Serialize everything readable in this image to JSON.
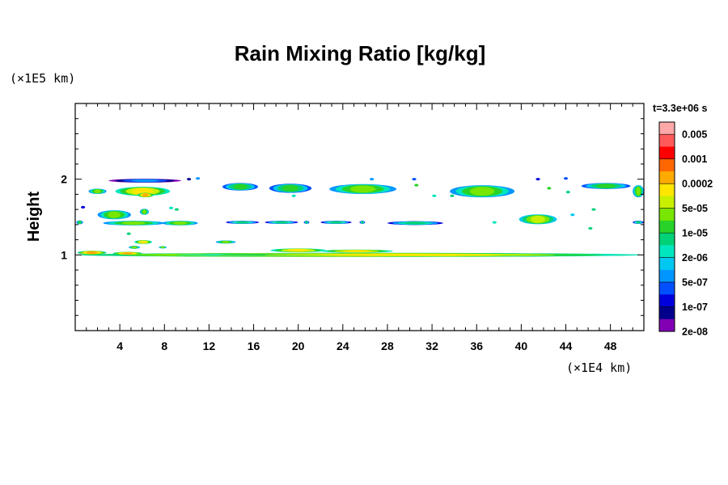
{
  "chart_data": {
    "type": "heatmap",
    "title": "Rain Mixing Ratio [kg/kg]",
    "ylabel": "Height",
    "x_unit": "(×1E4 km)",
    "y_unit": "(×1E5 km)",
    "time_label": "t=3.3e+06 s",
    "xlim": [
      0,
      51
    ],
    "ylim": [
      0,
      3
    ],
    "x_ticks": [
      4,
      8,
      12,
      16,
      20,
      24,
      28,
      32,
      36,
      40,
      44,
      48
    ],
    "x_tick_labels": [
      "4",
      "8",
      "12",
      "16",
      "20",
      "24",
      "28",
      "32",
      "36",
      "40",
      "44",
      "48"
    ],
    "y_ticks": [
      1,
      2
    ],
    "y_tick_labels": [
      "1",
      "2"
    ],
    "colorbar": {
      "labels": [
        "0.005",
        "0.001",
        "0.0002",
        "5e-05",
        "1e-05",
        "2e-06",
        "5e-07",
        "1e-07",
        "2e-08"
      ],
      "colors": [
        "#ffa8a8",
        "#ff5a5a",
        "#ff0000",
        "#ff6600",
        "#ffaa00",
        "#ffe600",
        "#c8f000",
        "#78e600",
        "#28d228",
        "#00d278",
        "#00e6be",
        "#00c8f0",
        "#0096ff",
        "#0050ff",
        "#0000dc",
        "#00008c",
        "#8200b4"
      ]
    },
    "regions": [
      {
        "x0": 0.0,
        "x1": 51.0,
        "y": 1.0,
        "h": 0.055,
        "level": 5
      },
      {
        "x0": 0.2,
        "x1": 2.8,
        "y": 1.03,
        "h": 0.05,
        "level": 5
      },
      {
        "x0": 3.4,
        "x1": 6.0,
        "y": 1.02,
        "h": 0.04,
        "level": 5
      },
      {
        "x0": 9.0,
        "x1": 51.0,
        "y": 1.0,
        "h": 0.04,
        "level": 6
      },
      {
        "x0": 17.5,
        "x1": 22.5,
        "y": 1.06,
        "h": 0.05,
        "level": 6
      },
      {
        "x0": 22.0,
        "x1": 28.5,
        "y": 1.05,
        "h": 0.04,
        "level": 6
      },
      {
        "x0": 5.3,
        "x1": 6.9,
        "y": 1.17,
        "h": 0.05,
        "level": 6
      },
      {
        "x0": 4.8,
        "x1": 5.8,
        "y": 1.1,
        "h": 0.04,
        "level": 8
      },
      {
        "x0": 7.5,
        "x1": 8.2,
        "y": 1.1,
        "h": 0.03,
        "level": 8
      },
      {
        "x0": 12.6,
        "x1": 14.4,
        "y": 1.17,
        "h": 0.04,
        "level": 8
      },
      {
        "x0": 0.1,
        "x1": 0.7,
        "y": 1.43,
        "h": 0.05,
        "level": 9
      },
      {
        "x0": 2.5,
        "x1": 8.0,
        "y": 1.42,
        "h": 0.06,
        "level": 8
      },
      {
        "x0": 7.8,
        "x1": 11.0,
        "y": 1.42,
        "h": 0.06,
        "level": 8
      },
      {
        "x0": 13.5,
        "x1": 16.5,
        "y": 1.43,
        "h": 0.04,
        "level": 10
      },
      {
        "x0": 17.0,
        "x1": 20.0,
        "y": 1.43,
        "h": 0.04,
        "level": 10
      },
      {
        "x0": 20.5,
        "x1": 21.0,
        "y": 1.43,
        "h": 0.04,
        "level": 10
      },
      {
        "x0": 22.0,
        "x1": 24.8,
        "y": 1.43,
        "h": 0.04,
        "level": 10
      },
      {
        "x0": 25.5,
        "x1": 26.0,
        "y": 1.43,
        "h": 0.04,
        "level": 10
      },
      {
        "x0": 28.0,
        "x1": 33.0,
        "y": 1.42,
        "h": 0.05,
        "level": 10
      },
      {
        "x0": 50.0,
        "x1": 51.0,
        "y": 1.43,
        "h": 0.04,
        "level": 10
      },
      {
        "x0": 39.8,
        "x1": 43.2,
        "y": 1.47,
        "h": 0.13,
        "level": 7
      },
      {
        "x0": 2.0,
        "x1": 5.0,
        "y": 1.53,
        "h": 0.12,
        "level": 8
      },
      {
        "x0": 5.8,
        "x1": 6.6,
        "y": 1.57,
        "h": 0.08,
        "level": 8
      },
      {
        "x0": 1.2,
        "x1": 2.8,
        "y": 1.84,
        "h": 0.07,
        "level": 8
      },
      {
        "x0": 3.6,
        "x1": 8.5,
        "y": 1.84,
        "h": 0.12,
        "level": 6
      },
      {
        "x0": 5.6,
        "x1": 7.0,
        "y": 1.79,
        "h": 0.06,
        "level": 5
      },
      {
        "x0": 3.0,
        "x1": 9.5,
        "y": 1.98,
        "h": 0.05,
        "level": 13
      },
      {
        "x0": 13.2,
        "x1": 16.4,
        "y": 1.9,
        "h": 0.1,
        "level": 9
      },
      {
        "x0": 17.4,
        "x1": 21.2,
        "y": 1.88,
        "h": 0.12,
        "level": 9
      },
      {
        "x0": 22.8,
        "x1": 28.8,
        "y": 1.87,
        "h": 0.13,
        "level": 8
      },
      {
        "x0": 33.6,
        "x1": 39.4,
        "y": 1.84,
        "h": 0.16,
        "level": 8
      },
      {
        "x0": 45.4,
        "x1": 49.8,
        "y": 1.91,
        "h": 0.08,
        "level": 9
      },
      {
        "x0": 50.0,
        "x1": 51.0,
        "y": 1.84,
        "h": 0.16,
        "level": 8
      }
    ],
    "specks": [
      {
        "x": 0.7,
        "y": 1.63,
        "level": 14
      },
      {
        "x": 9.1,
        "y": 1.6,
        "level": 9
      },
      {
        "x": 10.2,
        "y": 2.0,
        "level": 15
      },
      {
        "x": 11.0,
        "y": 2.01,
        "level": 12
      },
      {
        "x": 30.4,
        "y": 2.0,
        "level": 13
      },
      {
        "x": 30.6,
        "y": 1.92,
        "level": 8
      },
      {
        "x": 26.6,
        "y": 2.0,
        "level": 12
      },
      {
        "x": 41.5,
        "y": 2.0,
        "level": 14
      },
      {
        "x": 44.0,
        "y": 2.01,
        "level": 13
      },
      {
        "x": 42.5,
        "y": 1.88,
        "level": 8
      },
      {
        "x": 32.2,
        "y": 1.78,
        "level": 10
      },
      {
        "x": 37.6,
        "y": 1.43,
        "level": 10
      },
      {
        "x": 44.6,
        "y": 1.53,
        "level": 11
      },
      {
        "x": 46.2,
        "y": 1.35,
        "level": 9
      },
      {
        "x": 46.5,
        "y": 1.6,
        "level": 9
      },
      {
        "x": 4.8,
        "y": 1.28,
        "level": 9
      },
      {
        "x": 8.6,
        "y": 1.62,
        "level": 10
      },
      {
        "x": 19.6,
        "y": 1.78,
        "level": 10
      },
      {
        "x": 33.8,
        "y": 1.78,
        "level": 9
      },
      {
        "x": 44.2,
        "y": 1.83,
        "level": 9
      }
    ]
  }
}
